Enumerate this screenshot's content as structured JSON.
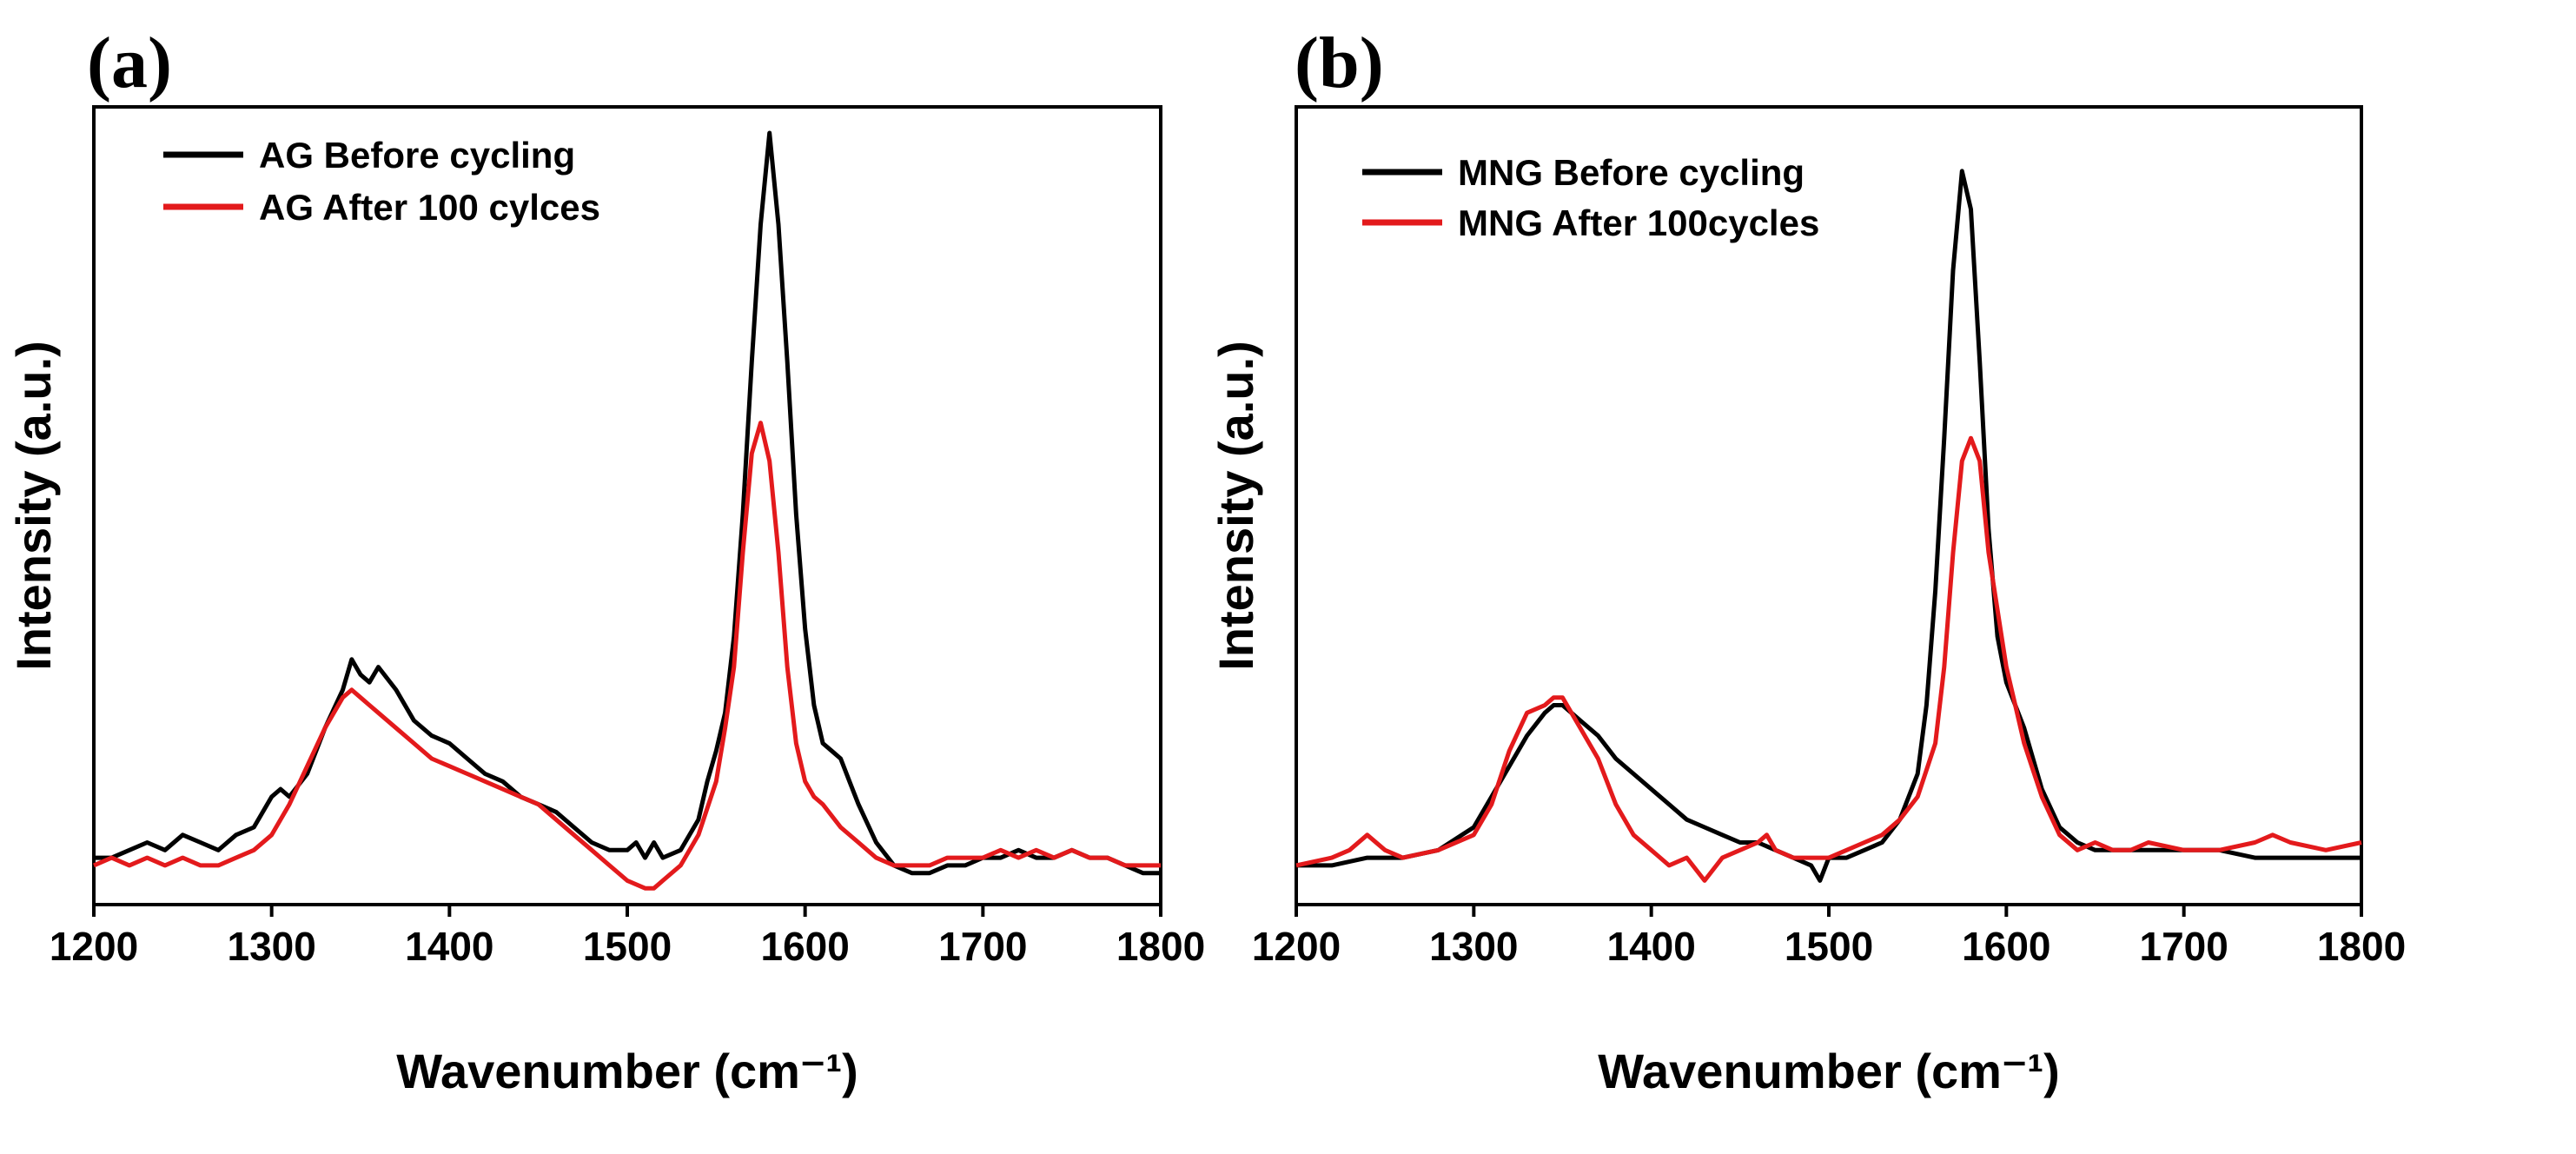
{
  "chart_data": [
    {
      "panel_label": "(a)",
      "type": "line",
      "xlabel": "Wavenumber (cm⁻¹)",
      "ylabel": "Intensity (a.u.)",
      "xlim": [
        1200,
        1800
      ],
      "ylim": [
        0,
        1
      ],
      "xticks": [
        1200,
        1300,
        1400,
        1500,
        1600,
        1700,
        1800
      ],
      "yticks_shown": false,
      "grid": false,
      "legend_position": "top-left",
      "series": [
        {
          "name": "AG Before cycling",
          "color": "#000000",
          "x": [
            1200,
            1210,
            1220,
            1230,
            1240,
            1250,
            1260,
            1270,
            1280,
            1290,
            1300,
            1305,
            1310,
            1320,
            1330,
            1340,
            1345,
            1350,
            1355,
            1360,
            1370,
            1380,
            1390,
            1400,
            1410,
            1420,
            1430,
            1440,
            1450,
            1460,
            1470,
            1480,
            1490,
            1500,
            1505,
            1510,
            1515,
            1520,
            1530,
            1540,
            1545,
            1550,
            1555,
            1560,
            1565,
            1570,
            1575,
            1580,
            1585,
            1590,
            1595,
            1600,
            1605,
            1610,
            1615,
            1620,
            1625,
            1630,
            1640,
            1650,
            1660,
            1670,
            1680,
            1690,
            1700,
            1710,
            1720,
            1730,
            1740,
            1750,
            1760,
            1770,
            1780,
            1790,
            1800
          ],
          "y": [
            0.05,
            0.05,
            0.06,
            0.07,
            0.06,
            0.08,
            0.07,
            0.06,
            0.08,
            0.09,
            0.13,
            0.14,
            0.13,
            0.16,
            0.22,
            0.27,
            0.31,
            0.29,
            0.28,
            0.3,
            0.27,
            0.23,
            0.21,
            0.2,
            0.18,
            0.16,
            0.15,
            0.13,
            0.12,
            0.11,
            0.09,
            0.07,
            0.06,
            0.06,
            0.07,
            0.05,
            0.07,
            0.05,
            0.06,
            0.1,
            0.15,
            0.19,
            0.24,
            0.34,
            0.5,
            0.7,
            0.88,
            1.0,
            0.88,
            0.7,
            0.5,
            0.35,
            0.25,
            0.2,
            0.19,
            0.18,
            0.15,
            0.12,
            0.07,
            0.04,
            0.03,
            0.03,
            0.04,
            0.04,
            0.05,
            0.05,
            0.06,
            0.05,
            0.05,
            0.06,
            0.05,
            0.05,
            0.04,
            0.03,
            0.03
          ]
        },
        {
          "name": "AG After 100 cylces",
          "color": "#e31a1c",
          "x": [
            1200,
            1210,
            1220,
            1230,
            1240,
            1250,
            1260,
            1270,
            1280,
            1290,
            1300,
            1310,
            1320,
            1330,
            1340,
            1345,
            1350,
            1355,
            1360,
            1370,
            1380,
            1390,
            1400,
            1410,
            1420,
            1430,
            1440,
            1450,
            1460,
            1470,
            1480,
            1490,
            1500,
            1510,
            1515,
            1520,
            1530,
            1540,
            1550,
            1555,
            1560,
            1565,
            1570,
            1575,
            1580,
            1585,
            1590,
            1595,
            1600,
            1605,
            1610,
            1620,
            1630,
            1640,
            1650,
            1660,
            1670,
            1680,
            1690,
            1700,
            1710,
            1720,
            1730,
            1740,
            1750,
            1760,
            1770,
            1780,
            1790,
            1800
          ],
          "y": [
            0.04,
            0.05,
            0.04,
            0.05,
            0.04,
            0.05,
            0.04,
            0.04,
            0.05,
            0.06,
            0.08,
            0.12,
            0.17,
            0.22,
            0.26,
            0.27,
            0.26,
            0.25,
            0.24,
            0.22,
            0.2,
            0.18,
            0.17,
            0.16,
            0.15,
            0.14,
            0.13,
            0.12,
            0.1,
            0.08,
            0.06,
            0.04,
            0.02,
            0.01,
            0.01,
            0.02,
            0.04,
            0.08,
            0.15,
            0.22,
            0.3,
            0.45,
            0.58,
            0.62,
            0.57,
            0.45,
            0.3,
            0.2,
            0.15,
            0.13,
            0.12,
            0.09,
            0.07,
            0.05,
            0.04,
            0.04,
            0.04,
            0.05,
            0.05,
            0.05,
            0.06,
            0.05,
            0.06,
            0.05,
            0.06,
            0.05,
            0.05,
            0.04,
            0.04,
            0.04
          ]
        }
      ]
    },
    {
      "panel_label": "(b)",
      "type": "line",
      "xlabel": "Wavenumber (cm⁻¹)",
      "ylabel": "Intensity (a.u.)",
      "xlim": [
        1200,
        1800
      ],
      "ylim": [
        0,
        1
      ],
      "xticks": [
        1200,
        1300,
        1400,
        1500,
        1600,
        1700,
        1800
      ],
      "yticks_shown": false,
      "grid": false,
      "legend_position": "top-left",
      "series": [
        {
          "name": "MNG Before cycling",
          "color": "#000000",
          "x": [
            1200,
            1220,
            1240,
            1260,
            1280,
            1300,
            1310,
            1320,
            1330,
            1340,
            1345,
            1350,
            1355,
            1360,
            1370,
            1380,
            1390,
            1400,
            1410,
            1420,
            1430,
            1440,
            1450,
            1460,
            1470,
            1480,
            1490,
            1495,
            1500,
            1510,
            1520,
            1530,
            1540,
            1550,
            1555,
            1560,
            1565,
            1570,
            1575,
            1580,
            1585,
            1590,
            1595,
            1600,
            1605,
            1610,
            1620,
            1630,
            1640,
            1650,
            1660,
            1670,
            1680,
            1700,
            1720,
            1740,
            1760,
            1780,
            1800
          ],
          "y": [
            0.04,
            0.04,
            0.05,
            0.05,
            0.06,
            0.09,
            0.13,
            0.17,
            0.21,
            0.24,
            0.25,
            0.25,
            0.24,
            0.23,
            0.21,
            0.18,
            0.16,
            0.14,
            0.12,
            0.1,
            0.09,
            0.08,
            0.07,
            0.07,
            0.06,
            0.05,
            0.04,
            0.02,
            0.05,
            0.05,
            0.06,
            0.07,
            0.1,
            0.16,
            0.25,
            0.4,
            0.6,
            0.82,
            0.95,
            0.9,
            0.7,
            0.48,
            0.34,
            0.28,
            0.25,
            0.22,
            0.14,
            0.09,
            0.07,
            0.06,
            0.06,
            0.06,
            0.06,
            0.06,
            0.06,
            0.05,
            0.05,
            0.05,
            0.05
          ]
        },
        {
          "name": "MNG After 100cycles",
          "color": "#e31a1c",
          "x": [
            1200,
            1220,
            1230,
            1240,
            1250,
            1260,
            1280,
            1300,
            1310,
            1320,
            1330,
            1340,
            1345,
            1350,
            1355,
            1360,
            1370,
            1380,
            1390,
            1400,
            1410,
            1420,
            1430,
            1440,
            1450,
            1460,
            1465,
            1470,
            1480,
            1490,
            1500,
            1510,
            1520,
            1530,
            1540,
            1550,
            1560,
            1565,
            1570,
            1575,
            1580,
            1585,
            1590,
            1600,
            1605,
            1610,
            1620,
            1630,
            1640,
            1650,
            1660,
            1670,
            1680,
            1700,
            1720,
            1740,
            1750,
            1760,
            1780,
            1800
          ],
          "y": [
            0.04,
            0.05,
            0.06,
            0.08,
            0.06,
            0.05,
            0.06,
            0.08,
            0.12,
            0.19,
            0.24,
            0.25,
            0.26,
            0.26,
            0.24,
            0.22,
            0.18,
            0.12,
            0.08,
            0.06,
            0.04,
            0.05,
            0.02,
            0.05,
            0.06,
            0.07,
            0.08,
            0.06,
            0.05,
            0.05,
            0.05,
            0.06,
            0.07,
            0.08,
            0.1,
            0.13,
            0.2,
            0.3,
            0.45,
            0.57,
            0.6,
            0.57,
            0.45,
            0.3,
            0.25,
            0.2,
            0.13,
            0.08,
            0.06,
            0.07,
            0.06,
            0.06,
            0.07,
            0.06,
            0.06,
            0.07,
            0.08,
            0.07,
            0.06,
            0.07
          ]
        }
      ]
    }
  ]
}
